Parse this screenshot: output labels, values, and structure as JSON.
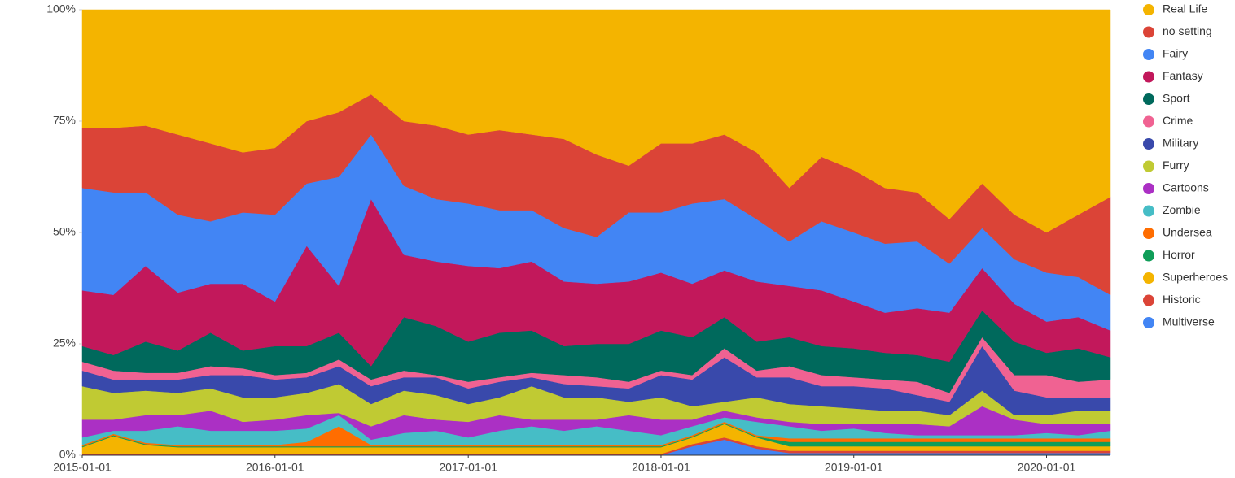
{
  "chart_data": {
    "type": "stacked_area_percent",
    "x": [
      "2015-01-01",
      "2015-03-01",
      "2015-05-01",
      "2015-07-01",
      "2015-09-01",
      "2015-11-01",
      "2016-01-01",
      "2016-03-01",
      "2016-05-01",
      "2016-07-01",
      "2016-09-01",
      "2016-11-01",
      "2017-01-01",
      "2017-03-01",
      "2017-05-01",
      "2017-07-01",
      "2017-09-01",
      "2017-11-01",
      "2018-01-01",
      "2018-03-01",
      "2018-05-01",
      "2018-07-01",
      "2018-09-01",
      "2018-11-01",
      "2019-01-01",
      "2019-03-01",
      "2019-05-01",
      "2019-07-01",
      "2019-09-01",
      "2019-11-01",
      "2020-01-01",
      "2020-03-01",
      "2020-05-01"
    ],
    "xlim": [
      "2015-01-01",
      "2020-05-01"
    ],
    "xticks": [
      "2015-01-01",
      "2016-01-01",
      "2017-01-01",
      "2018-01-01",
      "2019-01-01",
      "2020-01-01"
    ],
    "ylim": [
      0,
      100
    ],
    "yticks": [
      {
        "value": 0,
        "label": "0%"
      },
      {
        "value": 25,
        "label": "25%"
      },
      {
        "value": 50,
        "label": "50%"
      },
      {
        "value": 75,
        "label": "75%"
      },
      {
        "value": 100,
        "label": "100%"
      }
    ],
    "legend": "right",
    "series": [
      {
        "name": "Real Life",
        "color": "#f4b400",
        "values": [
          26.5,
          26.5,
          26,
          28,
          30,
          32,
          31,
          25,
          23,
          19,
          25,
          26,
          28,
          27,
          28,
          29,
          32.5,
          35,
          30,
          30,
          28,
          32,
          40,
          33,
          36,
          40,
          41,
          47,
          39,
          46,
          50,
          46,
          42
        ]
      },
      {
        "name": "no setting",
        "color": "#db4437",
        "values": [
          13.5,
          14.5,
          15,
          18,
          17.5,
          13.5,
          15,
          14,
          14.5,
          9,
          14.5,
          16.5,
          15.5,
          18,
          17,
          20,
          18.5,
          10.5,
          15.5,
          13.5,
          14.5,
          15,
          12,
          14.5,
          14,
          12.5,
          11,
          10,
          10,
          10,
          9,
          14,
          22
        ]
      },
      {
        "name": "Fairy",
        "color": "#4285f4",
        "values": [
          23,
          23,
          16.5,
          17.5,
          14,
          16,
          19.5,
          14,
          24.5,
          14.5,
          15.5,
          14,
          14,
          13,
          11.5,
          12,
          10.5,
          15.5,
          13.5,
          18,
          16,
          14,
          10,
          15.5,
          15.5,
          15.5,
          15,
          11,
          9,
          10,
          11,
          9,
          8
        ]
      },
      {
        "name": "Fantasy",
        "color": "#c2185b",
        "values": [
          12.5,
          13.5,
          17,
          13,
          11,
          15,
          10,
          22.5,
          10.5,
          37.5,
          14,
          14.5,
          17,
          14.5,
          15.5,
          14.5,
          13.5,
          14,
          13,
          12,
          10.5,
          13.5,
          11.5,
          12.5,
          10.5,
          9,
          10.5,
          11,
          9.5,
          8.5,
          7,
          7,
          6
        ]
      },
      {
        "name": "Sport",
        "color": "#00695c",
        "values": [
          3.5,
          3.5,
          7,
          5,
          7.5,
          4,
          6.5,
          6,
          6,
          3,
          12,
          11,
          9,
          10,
          9.5,
          6.5,
          7.5,
          8.5,
          9,
          8.5,
          7,
          6.5,
          6.5,
          6.5,
          6.5,
          6,
          6,
          7,
          6,
          7.5,
          5,
          7.5,
          5
        ]
      },
      {
        "name": "Crime",
        "color": "#f06292",
        "values": [
          2,
          2,
          1.5,
          1.5,
          2,
          1.5,
          1,
          1,
          1.5,
          1.5,
          1.5,
          0.5,
          1.5,
          1,
          1,
          2,
          2,
          1.5,
          1,
          1,
          2,
          1.5,
          2.5,
          2.5,
          2,
          2,
          3,
          2,
          2,
          3.5,
          5,
          3.5,
          4
        ]
      },
      {
        "name": "Military",
        "color": "#3949ab",
        "values": [
          3.5,
          3,
          2.5,
          3,
          3,
          5,
          4,
          3.5,
          4,
          4,
          3,
          4,
          3.5,
          3.5,
          2,
          3,
          2.5,
          3,
          5,
          6,
          10,
          4.5,
          6,
          4.5,
          5,
          5,
          3.5,
          3,
          10,
          5.5,
          4,
          3,
          3
        ]
      },
      {
        "name": "Furry",
        "color": "#c0ca33",
        "values": [
          7.5,
          6,
          5.5,
          5,
          5,
          5.5,
          5,
          5,
          6.5,
          5,
          5.5,
          5.5,
          4,
          4,
          7.5,
          5,
          5,
          3,
          5,
          3,
          2,
          4.5,
          4,
          4,
          3.5,
          3,
          3,
          2.5,
          3.5,
          1,
          2,
          3,
          3
        ]
      },
      {
        "name": "Cartoons",
        "color": "#ab30c4",
        "values": [
          4,
          2.5,
          3.5,
          2.5,
          4.5,
          2,
          2.5,
          3,
          0.5,
          3,
          4,
          2.5,
          3.5,
          3.5,
          1.5,
          2.5,
          1.5,
          3.5,
          3.5,
          1.5,
          1.5,
          1,
          1,
          1.5,
          1,
          2,
          2.5,
          2,
          6.5,
          3.5,
          2,
          2.5,
          1.5
        ]
      },
      {
        "name": "Zombie",
        "color": "#46bdc6",
        "values": [
          1.7,
          0.7,
          2.7,
          4.2,
          3.2,
          3.2,
          3.2,
          3,
          2.5,
          1.2,
          2.7,
          3.2,
          1.7,
          3.2,
          4.2,
          3.2,
          4.2,
          3.2,
          2.2,
          2,
          1,
          3,
          2.7,
          1.7,
          2.2,
          1.2,
          0.7,
          0.7,
          0.7,
          0.7,
          1.2,
          0.7,
          1.7
        ]
      },
      {
        "name": "Undersea",
        "color": "#ff6d00",
        "values": [
          0.3,
          0.3,
          0.3,
          0.3,
          0.3,
          0.3,
          0.3,
          1,
          4.5,
          0.3,
          0.3,
          0.3,
          0.3,
          0.3,
          0.3,
          0.3,
          0.3,
          0.3,
          0.3,
          0.3,
          0.3,
          0.3,
          0.8,
          0.8,
          0.8,
          0.8,
          0.8,
          0.8,
          0.8,
          0.8,
          0.8,
          0.8,
          0.8
        ]
      },
      {
        "name": "Horror",
        "color": "#0f9d58",
        "values": [
          0.2,
          0.2,
          0.2,
          0.2,
          0.2,
          0.2,
          0.2,
          0.2,
          0.2,
          0.2,
          0.2,
          0.2,
          0.2,
          0.2,
          0.2,
          0.2,
          0.2,
          0.2,
          0.2,
          0.2,
          0.2,
          0.2,
          1,
          1,
          1,
          1,
          1,
          1,
          1,
          1,
          1,
          1,
          1
        ]
      },
      {
        "name": "Superheroes",
        "color": "#f4b400",
        "values": [
          1.5,
          4,
          2,
          1.5,
          1.5,
          1.5,
          1.5,
          1.5,
          1.5,
          1.5,
          1.5,
          1.5,
          1.5,
          1.5,
          1.5,
          1.5,
          1.5,
          1.5,
          1.5,
          1.5,
          3,
          2,
          1,
          1,
          1,
          1,
          1,
          1,
          1,
          1,
          1,
          1,
          1
        ]
      },
      {
        "name": "Historic",
        "color": "#db4437",
        "values": [
          0.3,
          0.3,
          0.3,
          0.3,
          0.3,
          0.3,
          0.3,
          0.3,
          0.3,
          0.3,
          0.3,
          0.3,
          0.3,
          0.3,
          0.3,
          0.3,
          0.3,
          0.3,
          0.3,
          0.5,
          0.5,
          0.5,
          0.5,
          0.5,
          0.5,
          0.5,
          0.5,
          0.5,
          0.5,
          0.5,
          0.5,
          0.5,
          0.5
        ]
      },
      {
        "name": "Multiverse",
        "color": "#4285f4",
        "values": [
          0,
          0,
          0,
          0,
          0,
          0,
          0,
          0,
          0,
          0,
          0,
          0,
          0,
          0,
          0,
          0,
          0,
          0,
          0,
          2,
          3.5,
          1.5,
          0.5,
          0.5,
          0.5,
          0.5,
          0.5,
          0.5,
          0.5,
          0.5,
          0.5,
          0.5,
          0.5
        ]
      }
    ]
  }
}
